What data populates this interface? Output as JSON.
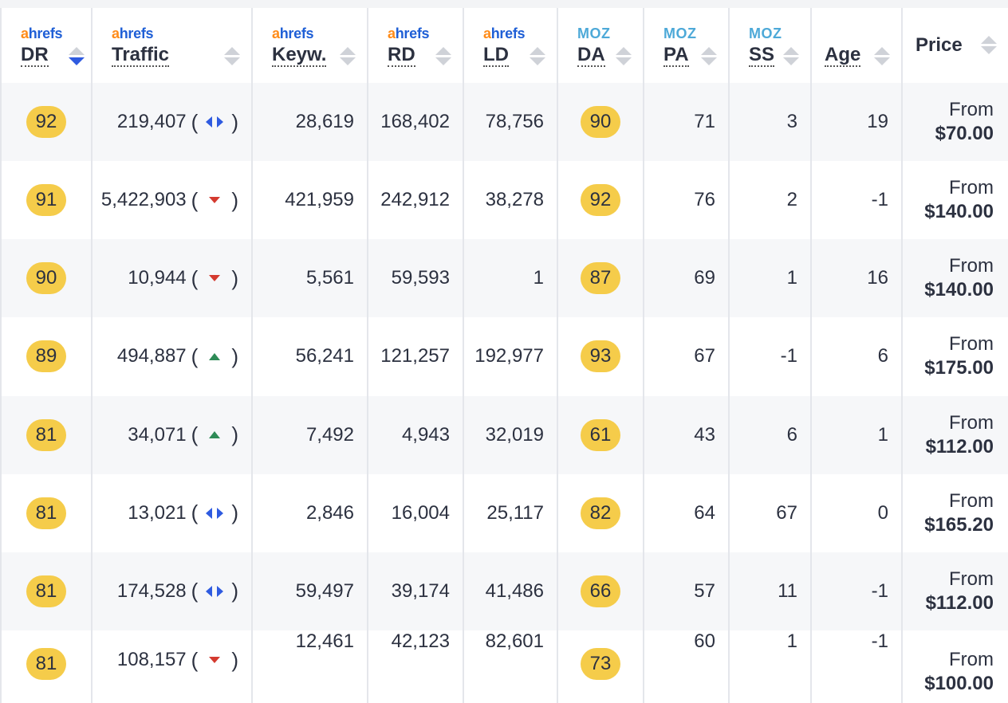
{
  "columns": {
    "dr": {
      "brand_a": "a",
      "brand_rest": "hrefs",
      "label": "DR"
    },
    "traffic": {
      "brand_a": "a",
      "brand_rest": "hrefs",
      "label": "Traffic"
    },
    "keywords": {
      "brand_a": "a",
      "brand_rest": "hrefs",
      "label": "Keyw."
    },
    "rd": {
      "brand_a": "a",
      "brand_rest": "hrefs",
      "label": "RD"
    },
    "ld": {
      "brand_a": "a",
      "brand_rest": "hrefs",
      "label": "LD"
    },
    "da": {
      "brand": "MOZ",
      "label": "DA"
    },
    "pa": {
      "brand": "MOZ",
      "label": "PA"
    },
    "ss": {
      "brand": "MOZ",
      "label": "SS"
    },
    "age": {
      "label": "Age"
    },
    "price": {
      "label": "Price"
    }
  },
  "sort": {
    "column": "DR",
    "direction": "descending",
    "active_color": "#2f5be0"
  },
  "colors": {
    "pill": "#f5cc4a",
    "trend_up": "#2e8b57",
    "trend_down": "#d43a2f",
    "trend_flat": "#2f5be0"
  },
  "rows": [
    {
      "dr": "92",
      "traffic": "219,407",
      "trend": "flat",
      "keywords": "28,619",
      "rd": "168,402",
      "ld": "78,756",
      "da": "90",
      "pa": "71",
      "ss": "3",
      "age": "19",
      "price_prefix": "From",
      "price": "$70.00"
    },
    {
      "dr": "91",
      "traffic": "5,422,903",
      "trend": "down",
      "keywords": "421,959",
      "rd": "242,912",
      "ld": "38,278",
      "da": "92",
      "pa": "76",
      "ss": "2",
      "age": "-1",
      "price_prefix": "From",
      "price": "$140.00"
    },
    {
      "dr": "90",
      "traffic": "10,944",
      "trend": "down",
      "keywords": "5,561",
      "rd": "59,593",
      "ld": "1",
      "da": "87",
      "pa": "69",
      "ss": "1",
      "age": "16",
      "price_prefix": "From",
      "price": "$140.00"
    },
    {
      "dr": "89",
      "traffic": "494,887",
      "trend": "up",
      "keywords": "56,241",
      "rd": "121,257",
      "ld": "192,977",
      "da": "93",
      "pa": "67",
      "ss": "-1",
      "age": "6",
      "price_prefix": "From",
      "price": "$175.00"
    },
    {
      "dr": "81",
      "traffic": "34,071",
      "trend": "up",
      "keywords": "7,492",
      "rd": "4,943",
      "ld": "32,019",
      "da": "61",
      "pa": "43",
      "ss": "6",
      "age": "1",
      "price_prefix": "From",
      "price": "$112.00"
    },
    {
      "dr": "81",
      "traffic": "13,021",
      "trend": "flat",
      "keywords": "2,846",
      "rd": "16,004",
      "ld": "25,117",
      "da": "82",
      "pa": "64",
      "ss": "67",
      "age": "0",
      "price_prefix": "From",
      "price": "$165.20"
    },
    {
      "dr": "81",
      "traffic": "174,528",
      "trend": "flat",
      "keywords": "59,497",
      "rd": "39,174",
      "ld": "41,486",
      "da": "66",
      "pa": "57",
      "ss": "11",
      "age": "-1",
      "price_prefix": "From",
      "price": "$112.00"
    },
    {
      "dr": "81",
      "traffic": "108,157",
      "trend": "down",
      "keywords": "12,461",
      "rd": "42,123",
      "ld": "82,601",
      "da": "73",
      "pa": "60",
      "ss": "1",
      "age": "-1",
      "price_prefix": "From",
      "price": "$100.00"
    }
  ]
}
